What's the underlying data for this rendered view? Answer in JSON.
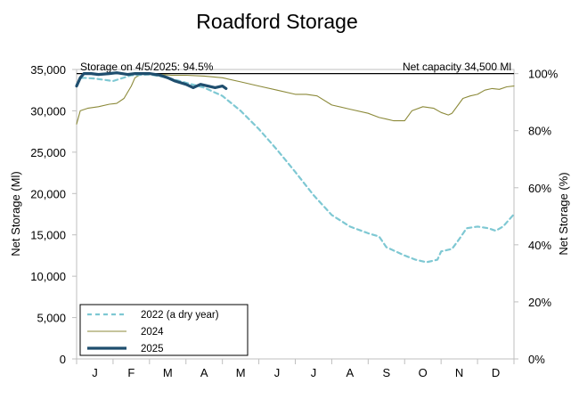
{
  "chart_data": {
    "type": "line",
    "title": "Roadford Storage",
    "ylabel_left": "Net Storage (Ml)",
    "ylabel_right": "Net Storage (%)",
    "ylim_left": [
      0,
      35000
    ],
    "ylim_right_percent": [
      0,
      100
    ],
    "capacity_ml": 34500,
    "y_ticks_left": [
      "0",
      "5,000",
      "10,000",
      "15,000",
      "20,000",
      "25,000",
      "30,000",
      "35,000"
    ],
    "y_ticks_right": [
      "0%",
      "20%",
      "40%",
      "60%",
      "80%",
      "100%"
    ],
    "x_ticks": [
      "J",
      "F",
      "M",
      "A",
      "M",
      "J",
      "J",
      "A",
      "S",
      "O",
      "N",
      "D"
    ],
    "x_unit": "month (0 = 1 Jan, 12 = 31 Dec)",
    "annotation_left": "Storage on 4/5/2025: 94.5%",
    "annotation_right": "Net capacity 34,500  Ml",
    "legend_position": "bottom-left",
    "series": [
      {
        "name": "2022 (a dry year)",
        "color": "#7ec8d3",
        "dash": true,
        "x": [
          0,
          0.15,
          0.5,
          1.0,
          1.5,
          2.0,
          2.5,
          3.0,
          3.5,
          4.0,
          4.5,
          5.0,
          5.5,
          6.0,
          6.5,
          7.0,
          7.5,
          8.0,
          8.3,
          8.5,
          9.0,
          9.3,
          9.6,
          9.9,
          10.0,
          10.3,
          10.5,
          10.7,
          11.0,
          11.3,
          11.5,
          11.7,
          12.0
        ],
        "values": [
          33200,
          34000,
          33900,
          33600,
          34300,
          34400,
          34000,
          33400,
          32800,
          31800,
          30000,
          27800,
          25300,
          22600,
          19800,
          17400,
          16000,
          15200,
          14800,
          13500,
          12500,
          12000,
          11700,
          12000,
          13000,
          13300,
          14500,
          15800,
          16000,
          15800,
          15500,
          16000,
          17500
        ]
      },
      {
        "name": "2024",
        "color": "#8c8a3a",
        "dash": false,
        "x": [
          0,
          0.1,
          0.3,
          0.6,
          0.9,
          1.1,
          1.3,
          1.5,
          1.6,
          1.8,
          2.0,
          2.3,
          2.6,
          3.0,
          3.5,
          4.0,
          4.5,
          5.0,
          5.5,
          6.0,
          6.3,
          6.6,
          7.0,
          7.5,
          8.0,
          8.3,
          8.5,
          8.7,
          9.0,
          9.2,
          9.5,
          9.8,
          10.0,
          10.2,
          10.3,
          10.6,
          10.8,
          11.0,
          11.2,
          11.4,
          11.6,
          11.8,
          12.0
        ],
        "values": [
          28400,
          30000,
          30300,
          30500,
          30800,
          30900,
          31500,
          33000,
          34000,
          34500,
          34500,
          34400,
          34300,
          34300,
          34200,
          34000,
          33500,
          33000,
          32500,
          32000,
          32000,
          31800,
          30700,
          30200,
          29700,
          29200,
          29000,
          28800,
          28800,
          30000,
          30500,
          30300,
          29800,
          29500,
          29700,
          31500,
          31800,
          32000,
          32500,
          32700,
          32600,
          32900,
          33000
        ]
      },
      {
        "name": "2025",
        "color": "#1f4e6e",
        "dash": false,
        "x": [
          0,
          0.1,
          0.2,
          0.4,
          0.6,
          0.9,
          1.1,
          1.4,
          1.6,
          1.8,
          2.0,
          2.3,
          2.5,
          2.7,
          3.0,
          3.2,
          3.4,
          3.6,
          3.8,
          4.0,
          4.1
        ],
        "values": [
          33000,
          34000,
          34500,
          34500,
          34400,
          34500,
          34600,
          34400,
          34500,
          34500,
          34500,
          34300,
          34000,
          33600,
          33200,
          32800,
          33200,
          33000,
          32800,
          33000,
          32700
        ]
      }
    ]
  }
}
